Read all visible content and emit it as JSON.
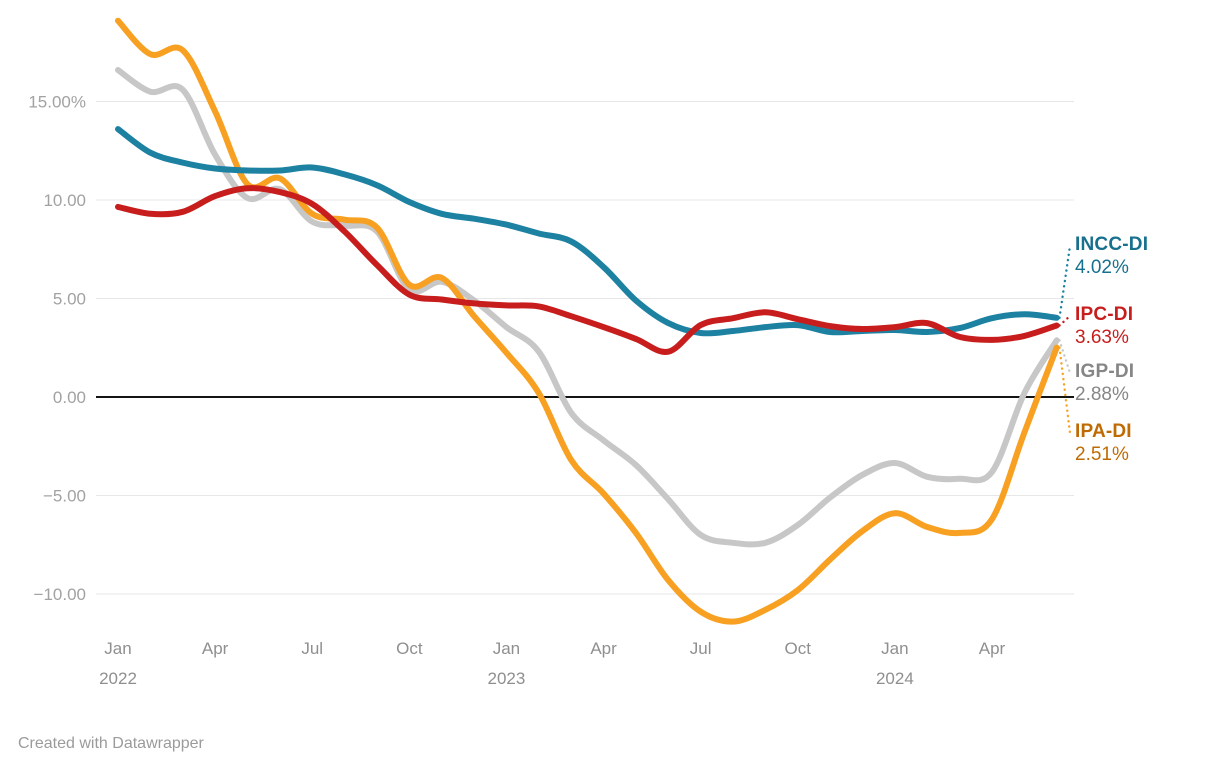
{
  "footer": {
    "credit": "Created with Datawrapper"
  },
  "colors": {
    "grid_line": "#e7e7e7",
    "zero_line": "#141414",
    "y_tick_text": "#a2a2a2",
    "x_tick_text": "#8f8f8f"
  },
  "chart_data": {
    "type": "line",
    "title": "",
    "xlabel": "",
    "ylabel": "",
    "x_unit": "month",
    "x_range": [
      "Jan 2022",
      "Jun 2024"
    ],
    "grid": "horizontal",
    "legend_position": "right-edge-labels",
    "ylim": [
      -12.6,
      19.6
    ],
    "y_ticks": [
      {
        "v": 15,
        "label": "15.00%"
      },
      {
        "v": 10,
        "label": "10.00"
      },
      {
        "v": 5,
        "label": "5.00"
      },
      {
        "v": 0,
        "label": "0.00"
      },
      {
        "v": -5,
        "label": "−5.00"
      },
      {
        "v": -10,
        "label": "−10.00"
      }
    ],
    "x_ticks": [
      {
        "m": 0,
        "line1": "Jan",
        "line2": "2022"
      },
      {
        "m": 3,
        "line1": "Apr",
        "line2": ""
      },
      {
        "m": 6,
        "line1": "Jul",
        "line2": ""
      },
      {
        "m": 9,
        "line1": "Oct",
        "line2": ""
      },
      {
        "m": 12,
        "line1": "Jan",
        "line2": "2023"
      },
      {
        "m": 15,
        "line1": "Apr",
        "line2": ""
      },
      {
        "m": 18,
        "line1": "Jul",
        "line2": ""
      },
      {
        "m": 21,
        "line1": "Oct",
        "line2": ""
      },
      {
        "m": 24,
        "line1": "Jan",
        "line2": "2024"
      },
      {
        "m": 27,
        "line1": "Apr",
        "line2": ""
      }
    ],
    "series": [
      {
        "name": "INCC-DI",
        "end_label": "4.02%",
        "end_value": 4.02,
        "color": "#1d81a2",
        "label_color": "#17708e",
        "z": 2,
        "values": [
          13.6,
          12.4,
          11.9,
          11.6,
          11.5,
          11.5,
          11.65,
          11.3,
          10.75,
          9.9,
          9.3,
          9.05,
          8.75,
          8.3,
          7.9,
          6.6,
          4.9,
          3.75,
          3.25,
          3.35,
          3.55,
          3.65,
          3.3,
          3.35,
          3.4,
          3.3,
          3.5,
          4.0,
          4.2,
          4.02
        ]
      },
      {
        "name": "IPC-DI",
        "end_label": "3.63%",
        "end_value": 3.63,
        "color": "#c71e1d",
        "label_color": "#c71e1d",
        "z": 3,
        "values": [
          9.65,
          9.3,
          9.4,
          10.2,
          10.6,
          10.4,
          9.8,
          8.4,
          6.7,
          5.2,
          4.95,
          4.75,
          4.65,
          4.6,
          4.1,
          3.55,
          2.95,
          2.3,
          3.65,
          4.0,
          4.3,
          3.95,
          3.6,
          3.45,
          3.55,
          3.75,
          3.05,
          2.9,
          3.1,
          3.63
        ]
      },
      {
        "name": "IGP-DI",
        "end_label": "2.88%",
        "end_value": 2.88,
        "color": "#c7c7c7",
        "label_color": "#868686",
        "z": 0,
        "values": [
          16.6,
          15.5,
          15.6,
          12.3,
          10.1,
          10.55,
          8.9,
          8.7,
          8.4,
          5.45,
          5.85,
          4.9,
          3.55,
          2.3,
          -0.8,
          -2.2,
          -3.45,
          -5.2,
          -7.0,
          -7.4,
          -7.4,
          -6.5,
          -5.1,
          -3.95,
          -3.35,
          -4.05,
          -4.15,
          -3.8,
          0.2,
          2.88
        ]
      },
      {
        "name": "IPA-DI",
        "end_label": "2.51%",
        "end_value": 2.51,
        "color": "#f7a021",
        "label_color": "#bf6b04",
        "z": 1,
        "values": [
          19.1,
          17.4,
          17.6,
          14.5,
          10.8,
          11.1,
          9.3,
          9.0,
          8.6,
          5.7,
          6.05,
          4.1,
          2.25,
          0.2,
          -3.2,
          -4.9,
          -6.9,
          -9.3,
          -10.9,
          -11.4,
          -10.8,
          -9.8,
          -8.25,
          -6.8,
          -5.9,
          -6.6,
          -6.9,
          -6.2,
          -1.8,
          2.51
        ]
      }
    ]
  }
}
